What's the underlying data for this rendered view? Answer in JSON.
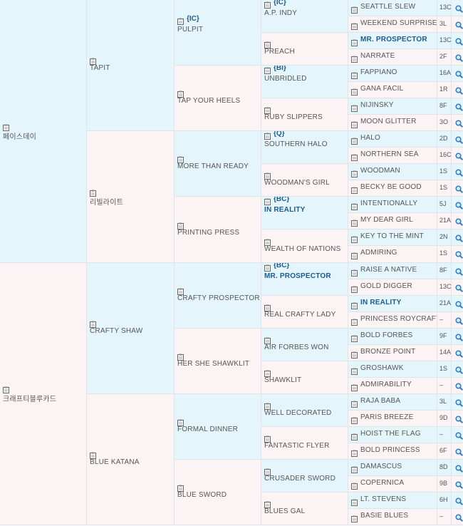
{
  "gen1": [
    {
      "name": "페이스데이",
      "bold": false
    },
    {
      "name": "크래프티블루카드",
      "bold": false
    }
  ],
  "gen2": [
    {
      "name": "TAPIT",
      "bold": false
    },
    {
      "name": "리빌라이트",
      "bold": false
    },
    {
      "name": "CRAFTY SHAW",
      "bold": false
    },
    {
      "name": "BLUE KATANA",
      "bold": false
    }
  ],
  "gen3": [
    {
      "name": "PULPIT",
      "tag": "{IC}",
      "bold": false
    },
    {
      "name": "TAP YOUR HEELS",
      "tag": "",
      "bold": false
    },
    {
      "name": "MORE THAN READY",
      "tag": "",
      "bold": false
    },
    {
      "name": "PRINTING PRESS",
      "tag": "",
      "bold": false
    },
    {
      "name": "CRAFTY PROSPECTOR",
      "tag": "",
      "bold": false
    },
    {
      "name": "HER SHE SHAWKLIT",
      "tag": "",
      "bold": false
    },
    {
      "name": "FORMAL DINNER",
      "tag": "",
      "bold": false
    },
    {
      "name": "BLUE SWORD",
      "tag": "",
      "bold": false
    }
  ],
  "gen4": [
    {
      "name": "A.P. INDY",
      "tag": "{IC}",
      "bold": false
    },
    {
      "name": "PREACH",
      "tag": "",
      "bold": false
    },
    {
      "name": "UNBRIDLED",
      "tag": "{BI}",
      "bold": false
    },
    {
      "name": "RUBY SLIPPERS",
      "tag": "",
      "bold": false
    },
    {
      "name": "SOUTHERN HALO",
      "tag": "{Q}",
      "bold": false
    },
    {
      "name": "WOODMAN'S GIRL",
      "tag": "",
      "bold": false
    },
    {
      "name": "IN REALITY",
      "tag": "{BC}",
      "bold": true
    },
    {
      "name": "WEALTH OF NATIONS",
      "tag": "",
      "bold": false
    },
    {
      "name": "MR. PROSPECTOR",
      "tag": "{BC}",
      "bold": true
    },
    {
      "name": "REAL CRAFTY LADY",
      "tag": "",
      "bold": false
    },
    {
      "name": "AIR FORBES WON",
      "tag": "",
      "bold": false
    },
    {
      "name": "SHAWKLIT",
      "tag": "",
      "bold": false
    },
    {
      "name": "WELL DECORATED",
      "tag": "",
      "bold": false
    },
    {
      "name": "FANTASTIC FLYER",
      "tag": "",
      "bold": false
    },
    {
      "name": "CRUSADER SWORD",
      "tag": "",
      "bold": false
    },
    {
      "name": "BLUES GAL",
      "tag": "",
      "bold": false
    }
  ],
  "gen5": [
    {
      "name": "SEATTLE SLEW",
      "code": "13C",
      "bold": false
    },
    {
      "name": "WEEKEND SURPRISE",
      "code": "3L",
      "bold": false
    },
    {
      "name": "MR. PROSPECTOR",
      "code": "13C",
      "bold": true
    },
    {
      "name": "NARRATE",
      "code": "2F",
      "bold": false
    },
    {
      "name": "FAPPIANO",
      "code": "16A",
      "bold": false
    },
    {
      "name": "GANA FACIL",
      "code": "1R",
      "bold": false
    },
    {
      "name": "NIJINSKY",
      "code": "8F",
      "bold": false
    },
    {
      "name": "MOON GLITTER",
      "code": "3O",
      "bold": false
    },
    {
      "name": "HALO",
      "code": "2D",
      "bold": false
    },
    {
      "name": "NORTHERN SEA",
      "code": "16C",
      "bold": false
    },
    {
      "name": "WOODMAN",
      "code": "1S",
      "bold": false
    },
    {
      "name": "BECKY BE GOOD",
      "code": "1S",
      "bold": false
    },
    {
      "name": "INTENTIONALLY",
      "code": "5J",
      "bold": false
    },
    {
      "name": "MY DEAR GIRL",
      "code": "21A",
      "bold": false
    },
    {
      "name": "KEY TO THE MINT",
      "code": "2N",
      "bold": false
    },
    {
      "name": "ADMIRING",
      "code": "1S",
      "bold": false
    },
    {
      "name": "RAISE A NATIVE",
      "code": "8F",
      "bold": false
    },
    {
      "name": "GOLD DIGGER",
      "code": "13C",
      "bold": false
    },
    {
      "name": "IN REALITY",
      "code": "21A",
      "bold": true
    },
    {
      "name": "PRINCESS ROYCRAFT",
      "code": "–",
      "bold": false
    },
    {
      "name": "BOLD FORBES",
      "code": "9F",
      "bold": false
    },
    {
      "name": "BRONZE POINT",
      "code": "14A",
      "bold": false
    },
    {
      "name": "GROSHAWK",
      "code": "1S",
      "bold": false
    },
    {
      "name": "ADMIRABILITY",
      "code": "–",
      "bold": false
    },
    {
      "name": "RAJA BABA",
      "code": "3L",
      "bold": false
    },
    {
      "name": "PARIS BREEZE",
      "code": "9D",
      "bold": false
    },
    {
      "name": "HOIST THE FLAG",
      "code": "–",
      "bold": false
    },
    {
      "name": "BOLD PRINCESS",
      "code": "6F",
      "bold": false
    },
    {
      "name": "DAMASCUS",
      "code": "8D",
      "bold": false
    },
    {
      "name": "COPERNICA",
      "code": "9B",
      "bold": false
    },
    {
      "name": "LT. STEVENS",
      "code": "6H",
      "bold": false
    },
    {
      "name": "BASIE BLUES",
      "code": "–",
      "bold": false
    }
  ],
  "icons": {
    "clipboard": "clipboard-icon",
    "search": "search-icon"
  },
  "colors": {
    "sire_bg": "#e4f5fb",
    "dam_bg": "#fcf4f4",
    "bold_text": "#1a5c92",
    "text": "#555555",
    "magnifier": "#2b7bc4"
  }
}
